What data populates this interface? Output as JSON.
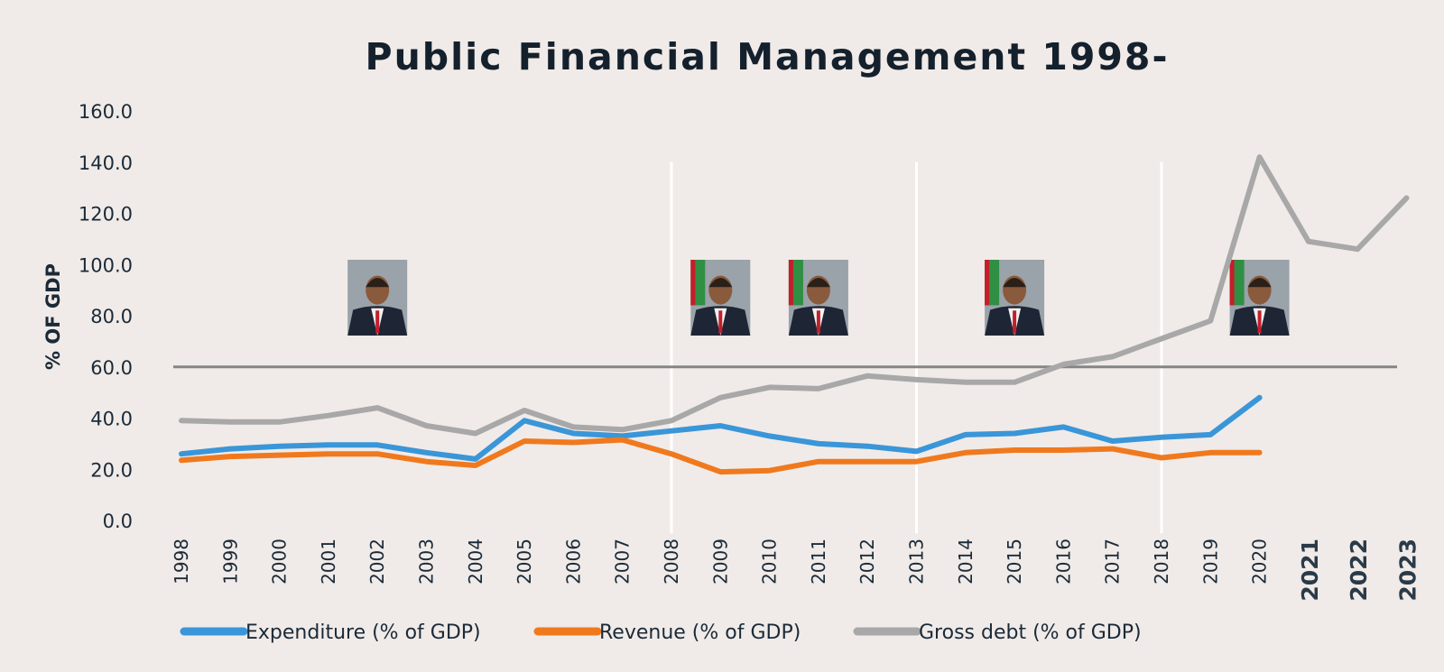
{
  "chart_data": {
    "type": "line",
    "title": "Public Financial Management 1998-",
    "ylabel": "% OF GDP",
    "xlabel": "",
    "ylim": [
      0,
      160
    ],
    "yticks": [
      "0.0",
      "20.0",
      "40.0",
      "60.0",
      "80.0",
      "100.0",
      "120.0",
      "140.0",
      "160.0"
    ],
    "x": [
      "1998",
      "1999",
      "2000",
      "2001",
      "2002",
      "2003",
      "2004",
      "2005",
      "2006",
      "2007",
      "2008",
      "2009",
      "2010",
      "2011",
      "2012",
      "2013",
      "2014",
      "2015",
      "2016",
      "2017",
      "2018",
      "2019",
      "2020",
      "2021",
      "2022",
      "2023"
    ],
    "bold_x": [
      "2021",
      "2022",
      "2023"
    ],
    "grid": false,
    "legend_position": "bottom",
    "reference_line": 60,
    "period_dividers": [
      "2008",
      "2013",
      "2018"
    ],
    "series": [
      {
        "name": "Expenditure (% of GDP)",
        "color": "#3a96d8",
        "values": [
          26,
          28,
          29,
          29.5,
          29.5,
          26.5,
          24,
          39,
          34,
          33,
          35,
          37,
          33,
          30,
          29,
          27,
          33.5,
          34,
          36.5,
          31,
          32.5,
          33.5,
          48,
          null,
          null,
          null
        ]
      },
      {
        "name": "Revenue (% of GDP)",
        "color": "#f0791e",
        "values": [
          23.5,
          25,
          25.5,
          26,
          26,
          23,
          21.5,
          31,
          30.5,
          31.5,
          26,
          19,
          19.5,
          23,
          23,
          23,
          26.5,
          27.5,
          27.5,
          28,
          24.5,
          26.5,
          26.5,
          null,
          null,
          null
        ]
      },
      {
        "name": "Gross debt (% of GDP)",
        "color": "#a8a8a8",
        "values": [
          39,
          38.5,
          38.5,
          41,
          44,
          37,
          34,
          43,
          36.5,
          35.5,
          39,
          48,
          52,
          51.5,
          56.5,
          55,
          54,
          54,
          61,
          64,
          71,
          78,
          142,
          109,
          106,
          126
        ]
      }
    ]
  },
  "portraits": [
    {
      "name": "portrait-1",
      "year": "2002",
      "flag": false
    },
    {
      "name": "portrait-2",
      "year": "2009",
      "flag": true
    },
    {
      "name": "portrait-3",
      "year": "2011",
      "flag": true
    },
    {
      "name": "portrait-4",
      "year": "2015",
      "flag": true
    },
    {
      "name": "portrait-5",
      "year": "2020",
      "flag": true
    }
  ]
}
